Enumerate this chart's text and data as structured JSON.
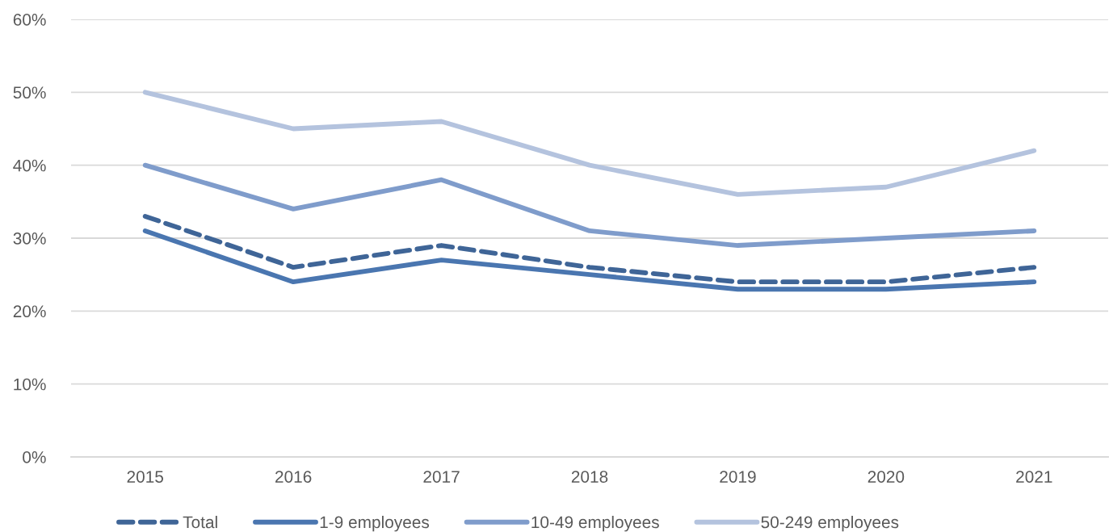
{
  "chart_data": {
    "type": "line",
    "categories": [
      "2015",
      "2016",
      "2017",
      "2018",
      "2019",
      "2020",
      "2021"
    ],
    "series": [
      {
        "name": "Total",
        "color": "#3f6597",
        "line_style": "dashed",
        "values": [
          33,
          26,
          29,
          26,
          24,
          24,
          26
        ]
      },
      {
        "name": "1-9 employees",
        "color": "#4a76b0",
        "line_style": "solid",
        "values": [
          31,
          24,
          27,
          25,
          23,
          23,
          24
        ]
      },
      {
        "name": "10-49 employees",
        "color": "#7f9ccb",
        "line_style": "solid",
        "values": [
          40,
          34,
          38,
          31,
          29,
          30,
          31
        ]
      },
      {
        "name": "50-249 employees",
        "color": "#b4c3de",
        "line_style": "solid",
        "values": [
          50,
          45,
          46,
          40,
          36,
          37,
          42
        ]
      }
    ],
    "ylim": [
      0,
      60
    ],
    "yticks": [
      {
        "value": 0,
        "label": "0%"
      },
      {
        "value": 10,
        "label": "10%"
      },
      {
        "value": 20,
        "label": "20%"
      },
      {
        "value": 30,
        "label": "30%"
      },
      {
        "value": 40,
        "label": "40%"
      },
      {
        "value": 50,
        "label": "50%"
      },
      {
        "value": 60,
        "label": "60%"
      }
    ],
    "grid": "y",
    "legend": "bottom",
    "marker": "none"
  }
}
